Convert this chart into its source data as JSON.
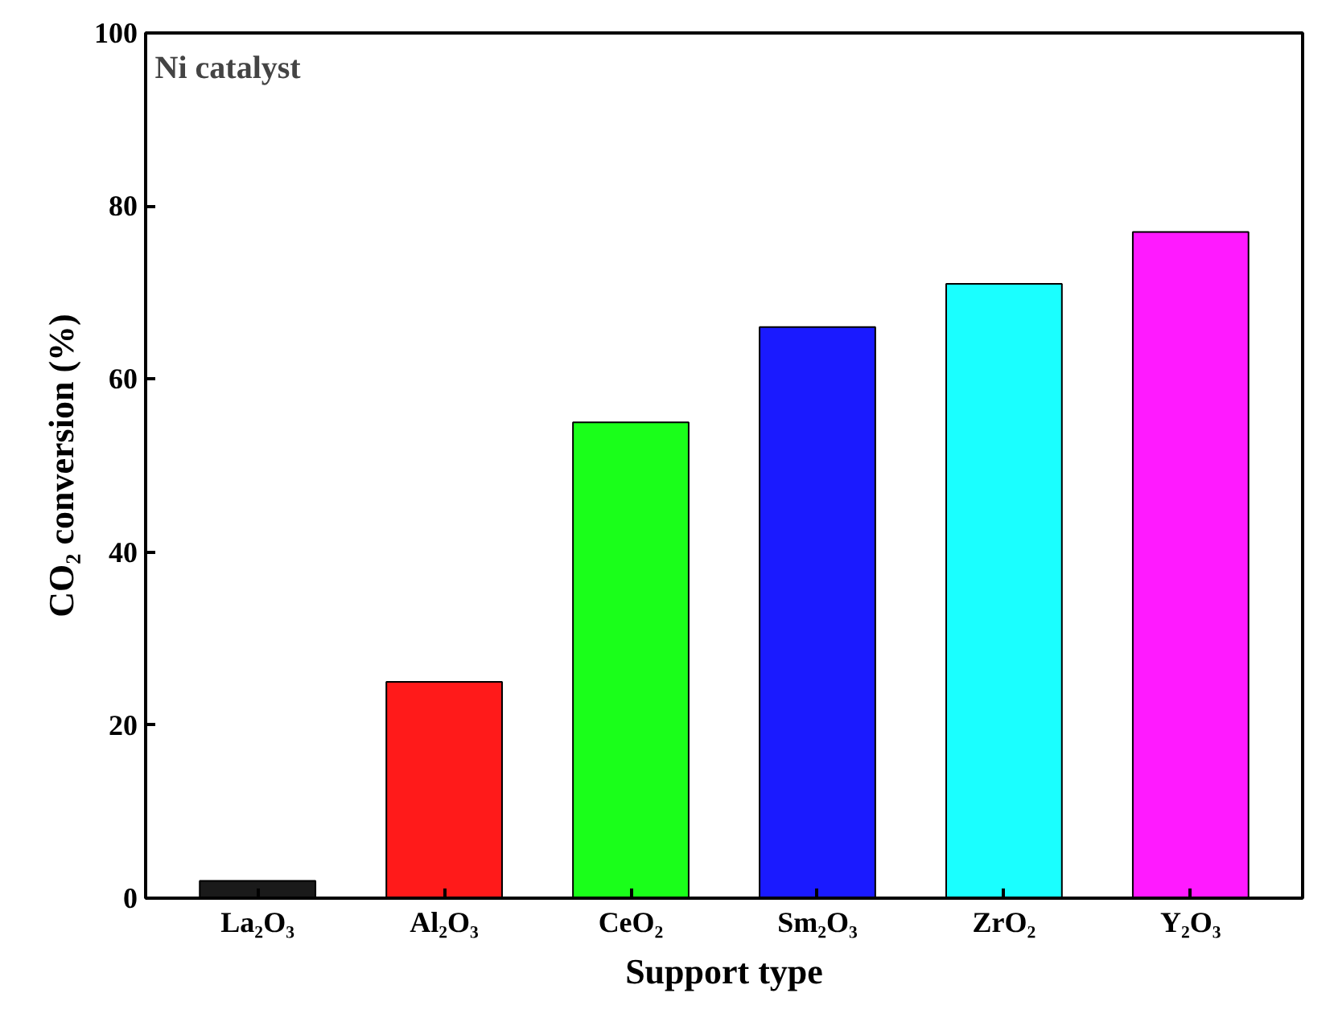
{
  "chart_data": {
    "type": "bar",
    "categories": [
      "La₂O₃",
      "Al₂O₃",
      "CeO₂",
      "Sm₂O₃",
      "ZrO₂",
      "Y₂O₃"
    ],
    "values": [
      2,
      25,
      55,
      66,
      71,
      77
    ],
    "colors": [
      "#1a1a1a",
      "#ff1a1a",
      "#1aff1a",
      "#1a1aff",
      "#1affff",
      "#ff1aff"
    ],
    "xlabel": "Support type",
    "ylabel": "CO₂ conversion (%)",
    "annotations": [
      "Ni catalyst"
    ],
    "ylim": [
      0,
      100
    ],
    "yticks": [
      0,
      20,
      40,
      60,
      80,
      100
    ],
    "grid": false
  }
}
